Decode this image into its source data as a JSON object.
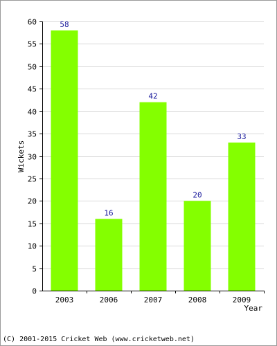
{
  "chart_data": {
    "type": "bar",
    "categories": [
      "2003",
      "2006",
      "2007",
      "2008",
      "2009"
    ],
    "values": [
      58,
      16,
      42,
      20,
      33
    ],
    "xlabel": "Year",
    "ylabel": "Wickets",
    "ylim": [
      0,
      60
    ],
    "yticks": [
      0,
      5,
      10,
      15,
      20,
      25,
      30,
      35,
      40,
      45,
      50,
      55,
      60
    ],
    "grid": true,
    "colors": {
      "bar": "#84ff00",
      "data_label": "#1a1a9c",
      "grid": "#d8d8d8",
      "axis": "#000000"
    }
  },
  "footer": {
    "text": "(C) 2001-2015 Cricket Web (www.cricketweb.net)"
  }
}
